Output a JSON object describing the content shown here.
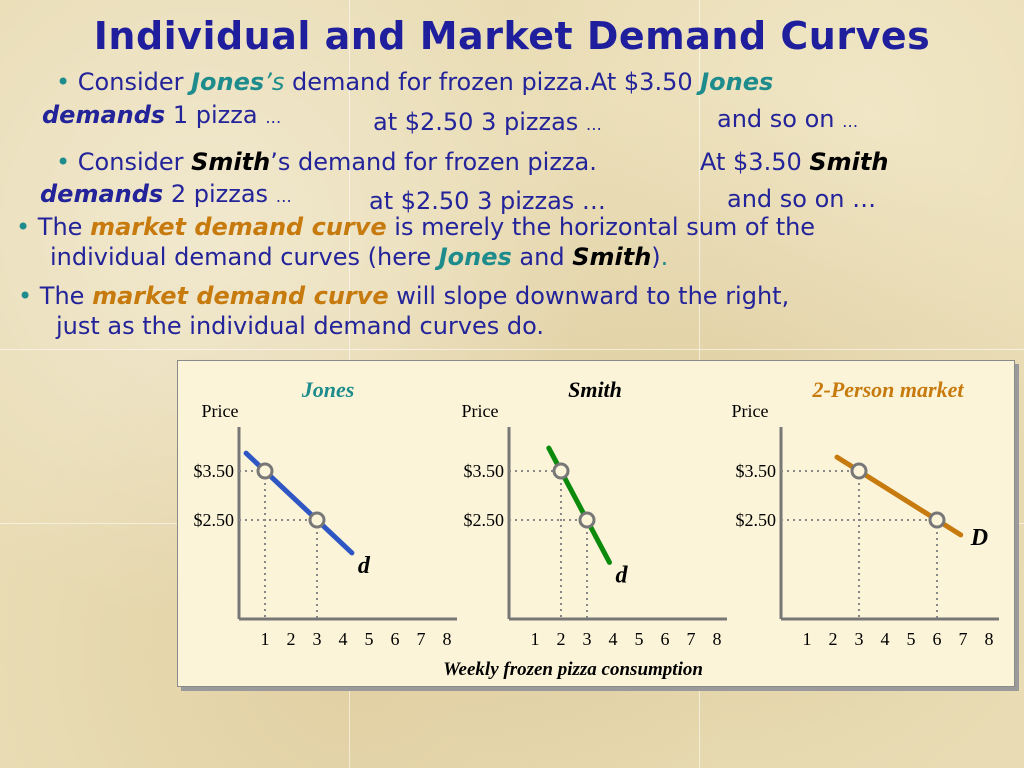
{
  "slide": {
    "title": "Individual and Market Demand Curves",
    "b1": {
      "bullet": "•",
      "consider": "Consider ",
      "name": "Jones",
      "suffix": "’s",
      "rest": " demand for frozen pizza.",
      "at350": "At $3.50 ",
      "name2": "Jones",
      "demands": "demands",
      "pizza1": " 1 pizza ",
      "ell1": "…",
      "at250": "at $2.50 3 pizzas ",
      "ell2": "…",
      "soon": "and so on ",
      "ell3": "…"
    },
    "b2": {
      "bullet": "•",
      "consider": "Consider ",
      "name": "Smith",
      "suffix": "’s demand for frozen pizza.",
      "at350": "At $3.50 ",
      "name2": "Smith",
      "demands": "demands",
      "pizza2": " 2 pizzas ",
      "ell1": "…",
      "at250": "at $2.50 3 pizzas …",
      "soon": "and so on …"
    },
    "b3": {
      "bullet": "•",
      "the": "The ",
      "mdc": "market demand curve",
      "rest1": " is merely the horizontal sum of the",
      "rest2": "individual demand curves (here ",
      "jones": "Jones",
      "and": " and ",
      "smith": "Smith",
      "close": ")",
      "period": "."
    },
    "b4": {
      "bullet": "•",
      "the": "The ",
      "mdc": "market demand curve",
      "rest1": " will slope downward to the right,",
      "rest2": "just as the individual demand curves do."
    }
  },
  "chart_data": [
    {
      "type": "line",
      "title": "Jones",
      "ylabel": "Price",
      "xticks": [
        1,
        2,
        3,
        4,
        5,
        6,
        7,
        8
      ],
      "yticks": [
        "$3.50",
        "$2.50"
      ],
      "points": [
        {
          "quantity": 1,
          "price": 3.5
        },
        {
          "quantity": 3,
          "price": 2.5
        }
      ],
      "curve_label": "d",
      "color": "#2f57c4",
      "title_color": "#1e8c8c"
    },
    {
      "type": "line",
      "title": "Smith",
      "ylabel": "Price",
      "xticks": [
        1,
        2,
        3,
        4,
        5,
        6,
        7,
        8
      ],
      "yticks": [
        "$3.50",
        "$2.50"
      ],
      "points": [
        {
          "quantity": 2,
          "price": 3.5
        },
        {
          "quantity": 3,
          "price": 2.5
        }
      ],
      "curve_label": "d",
      "color": "#0b8a0b",
      "title_color": "#000000"
    },
    {
      "type": "line",
      "title": "2-Person market",
      "ylabel": "Price",
      "xticks": [
        1,
        2,
        3,
        4,
        5,
        6,
        7,
        8
      ],
      "yticks": [
        "$3.50",
        "$2.50"
      ],
      "points": [
        {
          "quantity": 3,
          "price": 3.5
        },
        {
          "quantity": 6,
          "price": 2.5
        }
      ],
      "curve_label": "D",
      "color": "#c77a0d",
      "title_color": "#c77a0d"
    }
  ],
  "shared_xlabel": "Weekly frozen pizza consumption"
}
